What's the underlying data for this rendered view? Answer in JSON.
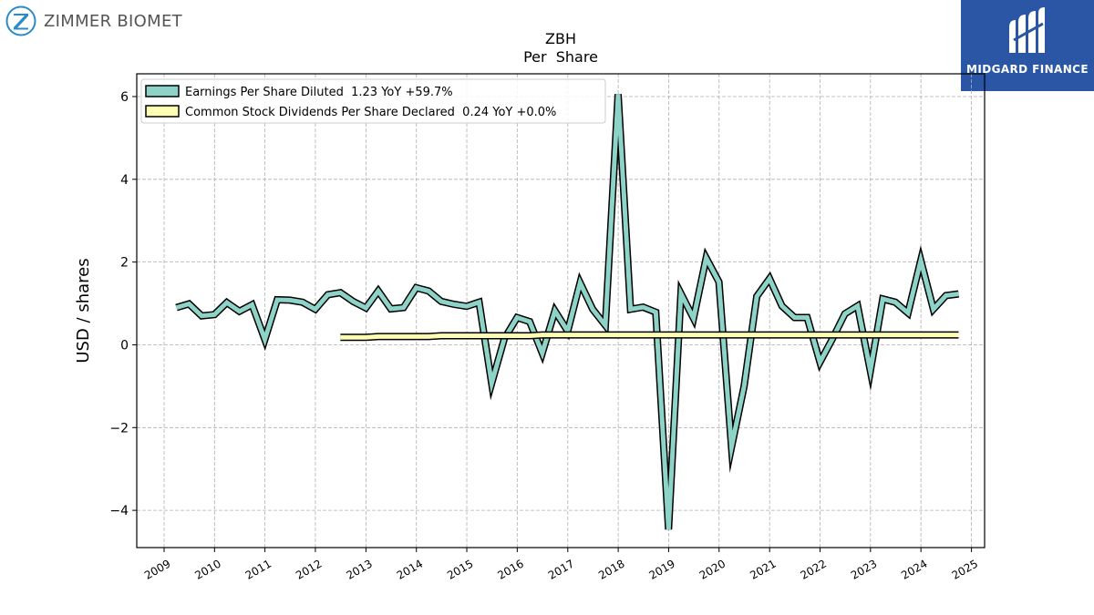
{
  "logos": {
    "company": "ZIMMER BIOMET",
    "watermark": "MIDGARD FINANCE"
  },
  "chart_data": {
    "type": "line",
    "title": "ZBH",
    "subtitle": "Per  Share",
    "xlabel": "",
    "ylabel": "USD / shares",
    "ylim": [
      -4.9,
      6.55
    ],
    "xlim": [
      "2008-06-17",
      "2025-04-06"
    ],
    "yticks": [
      -4,
      -2,
      0,
      2,
      4,
      6
    ],
    "ytick_labels": [
      "−4",
      "−2",
      "0",
      "2",
      "4",
      "6"
    ],
    "xticks": [
      "2009-01-01",
      "2010-01-01",
      "2011-01-01",
      "2012-01-01",
      "2013-01-01",
      "2014-01-01",
      "2015-01-01",
      "2016-01-01",
      "2017-01-01",
      "2018-01-01",
      "2019-01-01",
      "2020-01-01",
      "2021-01-01",
      "2022-01-01",
      "2023-01-01",
      "2024-01-01",
      "2025-01-01"
    ],
    "xtick_labels": [
      "2009",
      "2010",
      "2011",
      "2012",
      "2013",
      "2014",
      "2015",
      "2016",
      "2017",
      "2018",
      "2019",
      "2020",
      "2021",
      "2022",
      "2023",
      "2024",
      "2025"
    ],
    "grid": true,
    "legend_position": "top-left",
    "series": [
      {
        "name": "Earnings Per Share Diluted  1.23 YoY +59.7%",
        "color": "#8dd3c7",
        "x": [
          "2009-03-31",
          "2009-06-30",
          "2009-09-30",
          "2009-12-31",
          "2010-03-31",
          "2010-06-30",
          "2010-09-30",
          "2010-12-31",
          "2011-03-31",
          "2011-06-30",
          "2011-09-30",
          "2011-12-31",
          "2012-03-31",
          "2012-06-30",
          "2012-09-30",
          "2012-12-31",
          "2013-03-31",
          "2013-06-30",
          "2013-09-30",
          "2013-12-31",
          "2014-03-31",
          "2014-06-30",
          "2014-09-30",
          "2014-12-31",
          "2015-03-31",
          "2015-06-30",
          "2015-09-30",
          "2015-12-31",
          "2016-03-31",
          "2016-06-30",
          "2016-09-30",
          "2016-12-31",
          "2017-03-31",
          "2017-06-30",
          "2017-09-30",
          "2017-12-31",
          "2018-03-31",
          "2018-06-30",
          "2018-09-30",
          "2018-12-31",
          "2019-03-31",
          "2019-06-30",
          "2019-09-30",
          "2019-12-31",
          "2020-03-31",
          "2020-06-30",
          "2020-09-30",
          "2020-12-31",
          "2021-03-31",
          "2021-06-30",
          "2021-09-30",
          "2021-12-31",
          "2022-03-31",
          "2022-06-30",
          "2022-09-30",
          "2022-12-31",
          "2023-03-31",
          "2023-06-30",
          "2023-09-30",
          "2023-12-31",
          "2024-03-31",
          "2024-06-30",
          "2024-09-30"
        ],
        "values": [
          0.9,
          0.99,
          0.7,
          0.73,
          1.02,
          0.81,
          0.97,
          0.13,
          1.09,
          1.08,
          1.03,
          0.86,
          1.21,
          1.26,
          1.05,
          0.89,
          1.3,
          0.87,
          0.9,
          1.38,
          1.3,
          1.05,
          0.98,
          0.93,
          1.03,
          -0.93,
          0.15,
          0.66,
          0.56,
          -0.2,
          0.82,
          0.33,
          1.5,
          0.86,
          0.47,
          6.06,
          0.86,
          0.91,
          0.79,
          -4.46,
          1.24,
          0.64,
          2.1,
          1.52,
          -2.47,
          -1.0,
          1.17,
          1.6,
          0.94,
          0.66,
          0.66,
          -0.42,
          0.14,
          0.75,
          0.94,
          -0.63,
          1.11,
          1.03,
          0.77,
          2.04,
          0.86,
          1.19,
          1.23
        ]
      },
      {
        "name": "Common Stock Dividends Per Share Declared  0.24 YoY +0.0%",
        "color": "#ffffb3",
        "x": [
          "2012-06-30",
          "2012-09-30",
          "2012-12-31",
          "2013-03-31",
          "2013-06-30",
          "2013-09-30",
          "2013-12-31",
          "2014-03-31",
          "2014-06-30",
          "2014-09-30",
          "2014-12-31",
          "2015-03-31",
          "2015-06-30",
          "2015-09-30",
          "2015-12-31",
          "2016-03-31",
          "2016-06-30",
          "2016-09-30",
          "2016-12-31",
          "2017-03-31",
          "2017-06-30",
          "2017-09-30",
          "2017-12-31",
          "2018-03-31",
          "2018-06-30",
          "2018-09-30",
          "2018-12-31",
          "2019-03-31",
          "2019-06-30",
          "2019-09-30",
          "2019-12-31",
          "2020-03-31",
          "2020-06-30",
          "2020-09-30",
          "2020-12-31",
          "2021-03-31",
          "2021-06-30",
          "2021-09-30",
          "2021-12-31",
          "2022-03-31",
          "2022-06-30",
          "2022-09-30",
          "2022-12-31",
          "2023-03-31",
          "2023-06-30",
          "2023-09-30",
          "2023-12-31",
          "2024-03-31",
          "2024-06-30",
          "2024-09-30"
        ],
        "values": [
          0.18,
          0.18,
          0.18,
          0.2,
          0.2,
          0.2,
          0.2,
          0.2,
          0.22,
          0.22,
          0.22,
          0.22,
          0.22,
          0.22,
          0.22,
          0.22,
          0.24,
          0.24,
          0.24,
          0.24,
          0.24,
          0.24,
          0.24,
          0.24,
          0.24,
          0.24,
          0.24,
          0.24,
          0.24,
          0.24,
          0.24,
          0.24,
          0.24,
          0.24,
          0.24,
          0.24,
          0.24,
          0.24,
          0.24,
          0.24,
          0.24,
          0.24,
          0.24,
          0.24,
          0.24,
          0.24,
          0.24,
          0.24,
          0.24,
          0.24
        ]
      }
    ]
  }
}
